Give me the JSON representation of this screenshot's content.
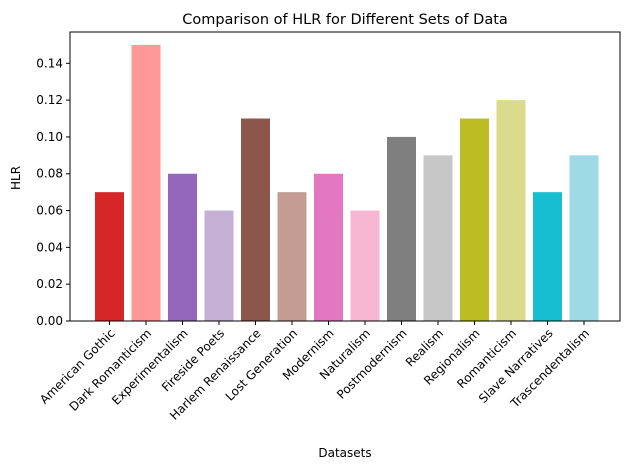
{
  "chart_data": {
    "type": "bar",
    "title": "Comparison of HLR for Different Sets of Data",
    "xlabel": "Datasets",
    "ylabel": "HLR",
    "ylim": [
      0,
      0.157
    ],
    "yticks": [
      0.0,
      0.02,
      0.04,
      0.06,
      0.08,
      0.1,
      0.12,
      0.14
    ],
    "ytick_labels": [
      "0.00",
      "0.02",
      "0.04",
      "0.06",
      "0.08",
      "0.10",
      "0.12",
      "0.14"
    ],
    "grid": false,
    "legend": "none",
    "categories": [
      "American Gothic",
      "Dark Romanticism",
      "Experimentalism",
      "Fireside Poets",
      "Harlem Renaissance",
      "Lost Generation",
      "Modernism",
      "Naturalism",
      "Postmodernism",
      "Realism",
      "Regionalism",
      "Romanticism",
      "Slave Narratives",
      "Trascendentalism"
    ],
    "values": [
      0.07,
      0.15,
      0.08,
      0.06,
      0.11,
      0.07,
      0.08,
      0.06,
      0.1,
      0.09,
      0.11,
      0.12,
      0.07,
      0.09
    ],
    "colors": [
      "#d62728",
      "#ff9896",
      "#9467bd",
      "#c5b0d5",
      "#8c564b",
      "#c49c94",
      "#e377c2",
      "#f7b6d2",
      "#7f7f7f",
      "#c7c7c7",
      "#bcbd22",
      "#dbdb8d",
      "#17becf",
      "#9edae5"
    ]
  }
}
